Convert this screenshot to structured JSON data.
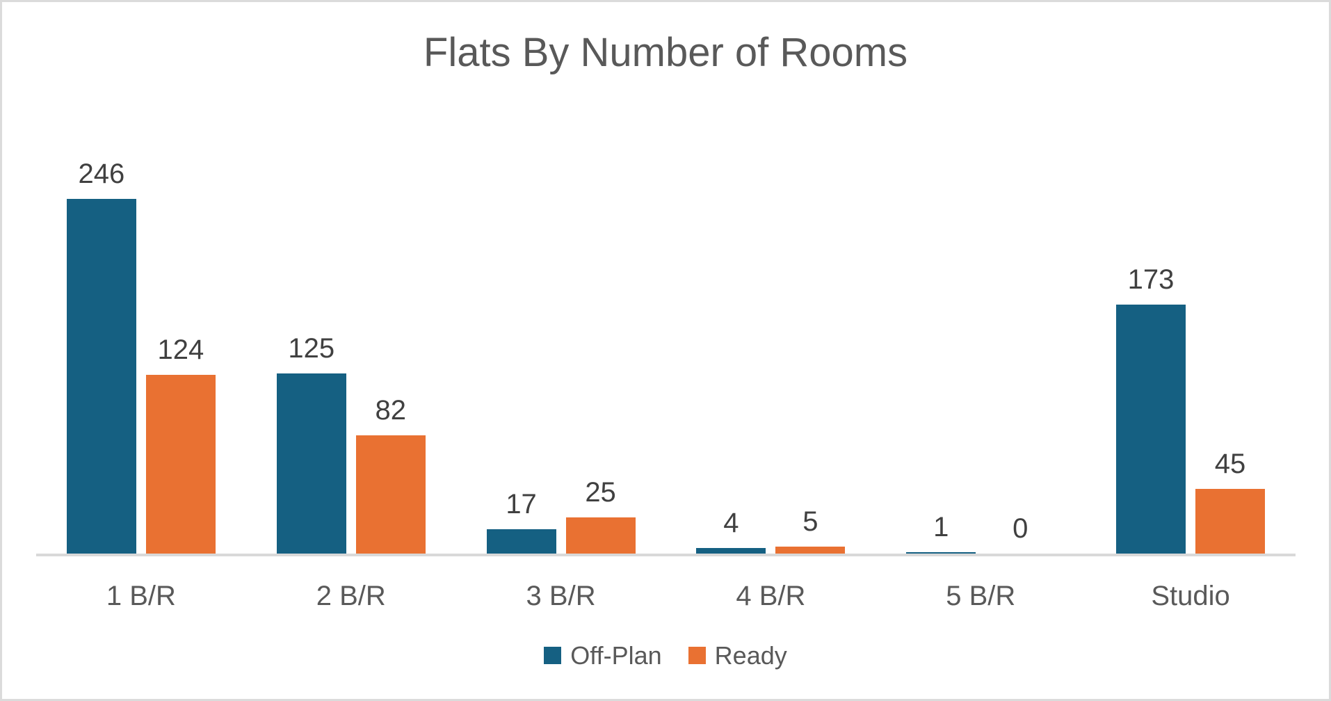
{
  "chart_data": {
    "type": "bar",
    "title": "Flats By Number of Rooms",
    "categories": [
      "1 B/R",
      "2 B/R",
      "3 B/R",
      "4 B/R",
      "5 B/R",
      "Studio"
    ],
    "series": [
      {
        "name": "Off-Plan",
        "color": "#156082",
        "values": [
          246,
          125,
          17,
          4,
          1,
          173
        ]
      },
      {
        "name": "Ready",
        "color": "#E97132",
        "values": [
          124,
          82,
          25,
          5,
          0,
          45
        ]
      }
    ],
    "xlabel": "",
    "ylabel": "",
    "ylim": [
      0,
      250
    ],
    "grid": false,
    "y_axis_visible": false,
    "data_labels": true,
    "legend_position": "bottom"
  },
  "colors": {
    "background": "#FFFFFF",
    "border": "#DBDBDB",
    "title_text": "#595959",
    "category_text": "#595959",
    "data_label_text": "#404040",
    "legend_text": "#595959",
    "axis_line": "#D9D9D9",
    "series_off_plan": "#156082",
    "series_ready": "#E97132"
  }
}
